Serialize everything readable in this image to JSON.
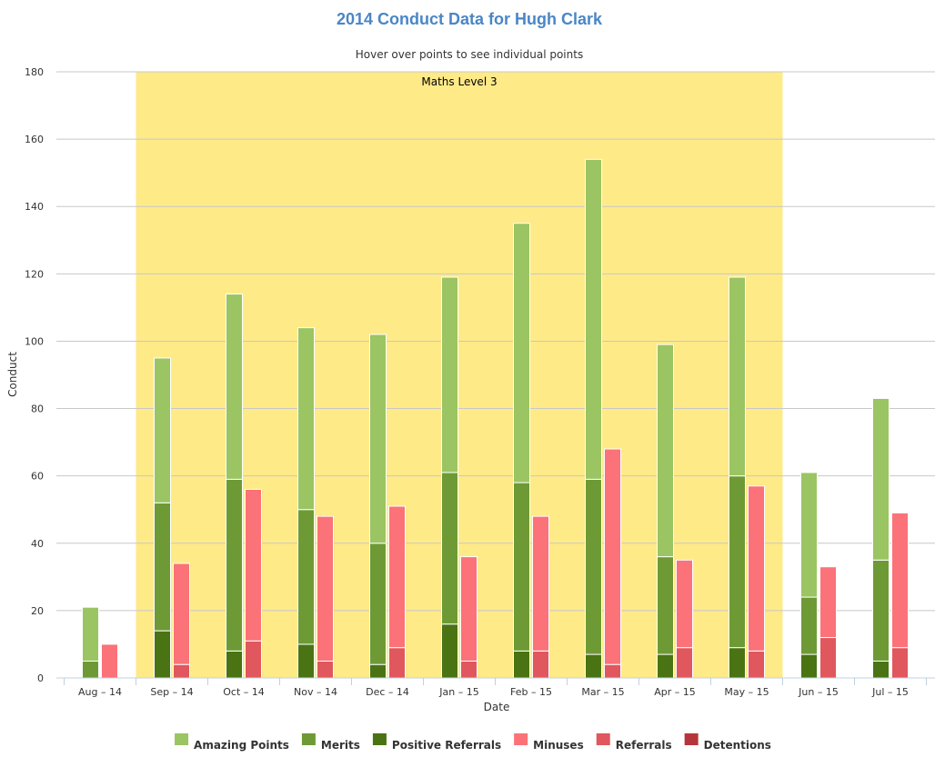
{
  "colors": {
    "amazing": "#9bc462",
    "merits": "#6e9a35",
    "positive_referrals": "#4a7314",
    "minuses": "#fb7278",
    "referrals": "#e0575e",
    "detentions": "#b6353a",
    "band": "#ffea88",
    "title": "#4a86c6",
    "grid": "#c8c8c8"
  },
  "chart_data": {
    "type": "bar",
    "stacked": true,
    "title": "2014 Conduct Data for Hugh Clark",
    "subtitle": "Hover over points to see individual points",
    "xlabel": "Date",
    "ylabel": "Conduct",
    "ylim": [
      0,
      180
    ],
    "yticks": [
      0,
      20,
      40,
      60,
      80,
      100,
      120,
      140,
      160,
      180
    ],
    "grid": true,
    "legend_position": "bottom",
    "categories": [
      "Aug – 14",
      "Sep – 14",
      "Oct – 14",
      "Nov – 14",
      "Dec – 14",
      "Jan – 15",
      "Feb – 15",
      "Mar – 15",
      "Apr – 15",
      "May – 15",
      "Jun – 15",
      "Jul – 15"
    ],
    "plot_band": {
      "label": "Maths Level 3",
      "from": "Sep – 14",
      "to": "May – 15"
    },
    "stacks": [
      {
        "stack": "positive",
        "series": [
          {
            "name": "Positive Referrals",
            "color_key": "positive_referrals",
            "values": [
              0,
              14,
              8,
              10,
              4,
              16,
              8,
              7,
              7,
              9,
              7,
              5
            ]
          },
          {
            "name": "Merits",
            "color_key": "merits",
            "values": [
              5,
              38,
              51,
              40,
              36,
              45,
              50,
              52,
              29,
              51,
              17,
              30
            ]
          },
          {
            "name": "Amazing Points",
            "color_key": "amazing",
            "values": [
              16,
              43,
              55,
              54,
              62,
              58,
              77,
              95,
              63,
              59,
              37,
              48
            ]
          }
        ]
      },
      {
        "stack": "negative",
        "series": [
          {
            "name": "Detentions",
            "color_key": "detentions",
            "values": [
              0,
              0,
              0,
              0,
              0,
              0,
              0,
              0,
              0,
              0,
              0,
              0
            ]
          },
          {
            "name": "Referrals",
            "color_key": "referrals",
            "values": [
              0,
              4,
              11,
              5,
              9,
              5,
              8,
              4,
              9,
              8,
              12,
              9
            ]
          },
          {
            "name": "Minuses",
            "color_key": "minuses",
            "values": [
              10,
              30,
              45,
              43,
              42,
              31,
              40,
              64,
              26,
              49,
              21,
              40
            ]
          }
        ]
      }
    ],
    "legend": [
      {
        "name": "Amazing Points",
        "color_key": "amazing"
      },
      {
        "name": "Merits",
        "color_key": "merits"
      },
      {
        "name": "Positive Referrals",
        "color_key": "positive_referrals"
      },
      {
        "name": "Minuses",
        "color_key": "minuses"
      },
      {
        "name": "Referrals",
        "color_key": "referrals"
      },
      {
        "name": "Detentions",
        "color_key": "detentions"
      }
    ]
  }
}
